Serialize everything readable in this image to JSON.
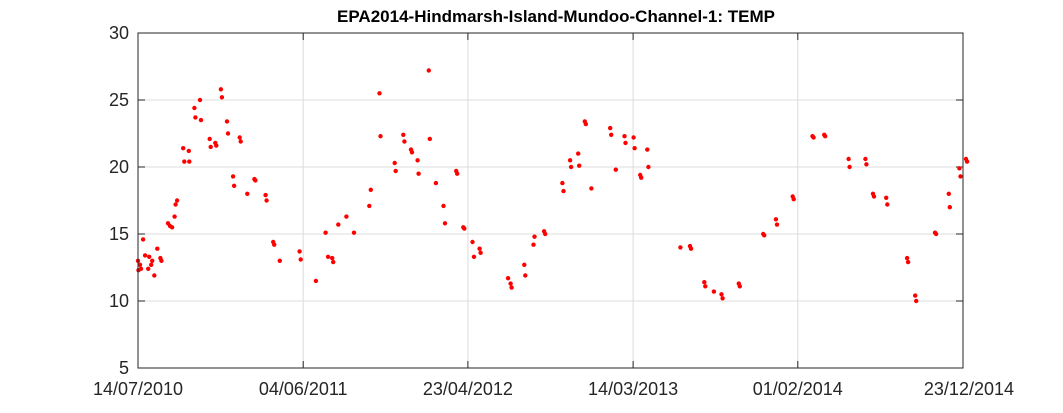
{
  "chart_data": {
    "type": "scatter",
    "title": "EPA2014-Hindmarsh-Island-Mundoo-Channel-1: TEMP",
    "xlabel": "",
    "ylabel": "",
    "x_axis_type": "date",
    "xlim": [
      "2010-07-14",
      "2014-12-23"
    ],
    "ylim": [
      5,
      30
    ],
    "x_ticks": [
      "2010-07-14",
      "2011-06-04",
      "2012-04-23",
      "2013-03-14",
      "2014-02-01",
      "2014-12-23"
    ],
    "x_tick_labels": [
      "14/07/2010",
      "04/06/2011",
      "23/04/2012",
      "14/03/2013",
      "01/02/2014",
      "23/12/2014"
    ],
    "y_ticks": [
      5,
      10,
      15,
      20,
      25,
      30
    ],
    "y_tick_labels": [
      "5",
      "10",
      "15",
      "20",
      "25",
      "30"
    ],
    "grid": true,
    "marker_color": "#ff0000",
    "series": [
      {
        "points": [
          [
            "2010-07-14",
            13.0
          ],
          [
            "2010-07-15",
            12.3
          ],
          [
            "2010-07-18",
            12.7
          ],
          [
            "2010-07-20",
            12.4
          ],
          [
            "2010-07-24",
            14.6
          ],
          [
            "2010-07-28",
            13.4
          ],
          [
            "2010-08-03",
            12.4
          ],
          [
            "2010-08-05",
            13.3
          ],
          [
            "2010-08-09",
            12.7
          ],
          [
            "2010-08-11",
            13.0
          ],
          [
            "2010-08-15",
            11.9
          ],
          [
            "2010-08-21",
            13.9
          ],
          [
            "2010-08-27",
            13.2
          ],
          [
            "2010-08-29",
            13.0
          ],
          [
            "2010-09-11",
            15.8
          ],
          [
            "2010-09-15",
            15.6
          ],
          [
            "2010-09-19",
            15.5
          ],
          [
            "2010-09-24",
            16.3
          ],
          [
            "2010-09-26",
            17.2
          ],
          [
            "2010-09-29",
            17.5
          ],
          [
            "2010-10-11",
            21.4
          ],
          [
            "2010-10-13",
            20.4
          ],
          [
            "2010-10-22",
            21.2
          ],
          [
            "2010-10-23",
            20.4
          ],
          [
            "2010-11-02",
            24.4
          ],
          [
            "2010-11-04",
            23.7
          ],
          [
            "2010-11-13",
            25.0
          ],
          [
            "2010-11-15",
            23.5
          ],
          [
            "2010-12-02",
            22.1
          ],
          [
            "2010-12-04",
            21.5
          ],
          [
            "2010-12-13",
            21.8
          ],
          [
            "2010-12-15",
            21.6
          ],
          [
            "2010-12-24",
            25.8
          ],
          [
            "2010-12-26",
            25.2
          ],
          [
            "2011-01-05",
            23.4
          ],
          [
            "2011-01-07",
            22.5
          ],
          [
            "2011-01-17",
            19.3
          ],
          [
            "2011-01-19",
            18.6
          ],
          [
            "2011-01-30",
            22.2
          ],
          [
            "2011-02-01",
            21.9
          ],
          [
            "2011-02-14",
            18.0
          ],
          [
            "2011-02-28",
            19.1
          ],
          [
            "2011-03-02",
            19.0
          ],
          [
            "2011-03-22",
            17.9
          ],
          [
            "2011-03-24",
            17.5
          ],
          [
            "2011-04-06",
            14.4
          ],
          [
            "2011-04-08",
            14.2
          ],
          [
            "2011-04-19",
            13.0
          ],
          [
            "2011-05-28",
            13.7
          ],
          [
            "2011-05-30",
            13.1
          ],
          [
            "2011-06-29",
            11.5
          ],
          [
            "2011-07-18",
            15.1
          ],
          [
            "2011-07-23",
            13.3
          ],
          [
            "2011-07-31",
            13.2
          ],
          [
            "2011-08-02",
            12.9
          ],
          [
            "2011-08-12",
            15.7
          ],
          [
            "2011-08-28",
            16.3
          ],
          [
            "2011-09-12",
            15.1
          ],
          [
            "2011-10-12",
            17.1
          ],
          [
            "2011-10-15",
            18.3
          ],
          [
            "2011-11-01",
            25.5
          ],
          [
            "2011-11-03",
            22.3
          ],
          [
            "2011-12-01",
            20.3
          ],
          [
            "2011-12-03",
            19.7
          ],
          [
            "2011-12-18",
            22.4
          ],
          [
            "2011-12-20",
            21.9
          ],
          [
            "2012-01-02",
            21.3
          ],
          [
            "2012-01-04",
            21.1
          ],
          [
            "2012-01-15",
            20.5
          ],
          [
            "2012-01-17",
            19.5
          ],
          [
            "2012-02-06",
            27.2
          ],
          [
            "2012-02-08",
            22.1
          ],
          [
            "2012-02-20",
            18.8
          ],
          [
            "2012-03-06",
            17.1
          ],
          [
            "2012-03-09",
            15.8
          ],
          [
            "2012-03-31",
            19.7
          ],
          [
            "2012-04-02",
            19.5
          ],
          [
            "2012-04-14",
            15.5
          ],
          [
            "2012-04-16",
            15.4
          ],
          [
            "2012-05-02",
            14.4
          ],
          [
            "2012-05-05",
            13.3
          ],
          [
            "2012-05-16",
            13.9
          ],
          [
            "2012-05-18",
            13.6
          ],
          [
            "2012-07-11",
            11.7
          ],
          [
            "2012-07-16",
            11.3
          ],
          [
            "2012-07-18",
            11.0
          ],
          [
            "2012-08-12",
            12.7
          ],
          [
            "2012-08-14",
            11.9
          ],
          [
            "2012-08-30",
            14.2
          ],
          [
            "2012-09-01",
            14.8
          ],
          [
            "2012-09-20",
            15.2
          ],
          [
            "2012-09-22",
            15.0
          ],
          [
            "2012-10-26",
            18.8
          ],
          [
            "2012-10-28",
            18.2
          ],
          [
            "2012-11-10",
            20.5
          ],
          [
            "2012-11-12",
            20.0
          ],
          [
            "2012-11-26",
            21.0
          ],
          [
            "2012-11-28",
            20.1
          ],
          [
            "2012-12-09",
            23.4
          ],
          [
            "2012-12-11",
            23.2
          ],
          [
            "2012-12-22",
            18.4
          ],
          [
            "2013-01-28",
            22.9
          ],
          [
            "2013-01-30",
            22.4
          ],
          [
            "2013-02-08",
            19.8
          ],
          [
            "2013-02-25",
            22.3
          ],
          [
            "2013-02-27",
            21.8
          ],
          [
            "2013-03-15",
            22.2
          ],
          [
            "2013-03-17",
            21.4
          ],
          [
            "2013-03-28",
            19.4
          ],
          [
            "2013-03-30",
            19.2
          ],
          [
            "2013-04-11",
            21.3
          ],
          [
            "2013-04-13",
            20.0
          ],
          [
            "2013-06-15",
            14.0
          ],
          [
            "2013-07-04",
            14.1
          ],
          [
            "2013-07-06",
            13.9
          ],
          [
            "2013-08-01",
            11.4
          ],
          [
            "2013-08-03",
            11.1
          ],
          [
            "2013-08-20",
            10.7
          ],
          [
            "2013-09-04",
            10.5
          ],
          [
            "2013-09-06",
            10.2
          ],
          [
            "2013-10-08",
            11.3
          ],
          [
            "2013-10-10",
            11.1
          ],
          [
            "2013-11-25",
            15.0
          ],
          [
            "2013-11-27",
            14.9
          ],
          [
            "2013-12-20",
            16.1
          ],
          [
            "2013-12-22",
            15.7
          ],
          [
            "2014-01-22",
            17.8
          ],
          [
            "2014-01-24",
            17.6
          ],
          [
            "2014-03-02",
            22.3
          ],
          [
            "2014-03-04",
            22.2
          ],
          [
            "2014-03-25",
            22.4
          ],
          [
            "2014-03-27",
            22.3
          ],
          [
            "2014-05-12",
            20.6
          ],
          [
            "2014-05-14",
            20.0
          ],
          [
            "2014-06-14",
            20.6
          ],
          [
            "2014-06-16",
            20.2
          ],
          [
            "2014-06-29",
            18.0
          ],
          [
            "2014-07-01",
            17.8
          ],
          [
            "2014-07-25",
            17.7
          ],
          [
            "2014-07-27",
            17.2
          ],
          [
            "2014-09-04",
            13.2
          ],
          [
            "2014-09-06",
            12.9
          ],
          [
            "2014-09-20",
            10.4
          ],
          [
            "2014-09-22",
            10.0
          ],
          [
            "2014-10-29",
            15.1
          ],
          [
            "2014-10-31",
            15.0
          ],
          [
            "2014-11-25",
            18.0
          ],
          [
            "2014-11-27",
            17.0
          ],
          [
            "2014-12-16",
            19.9
          ],
          [
            "2014-12-18",
            19.3
          ],
          [
            "2014-12-29",
            20.6
          ],
          [
            "2014-12-31",
            20.4
          ]
        ]
      }
    ]
  }
}
